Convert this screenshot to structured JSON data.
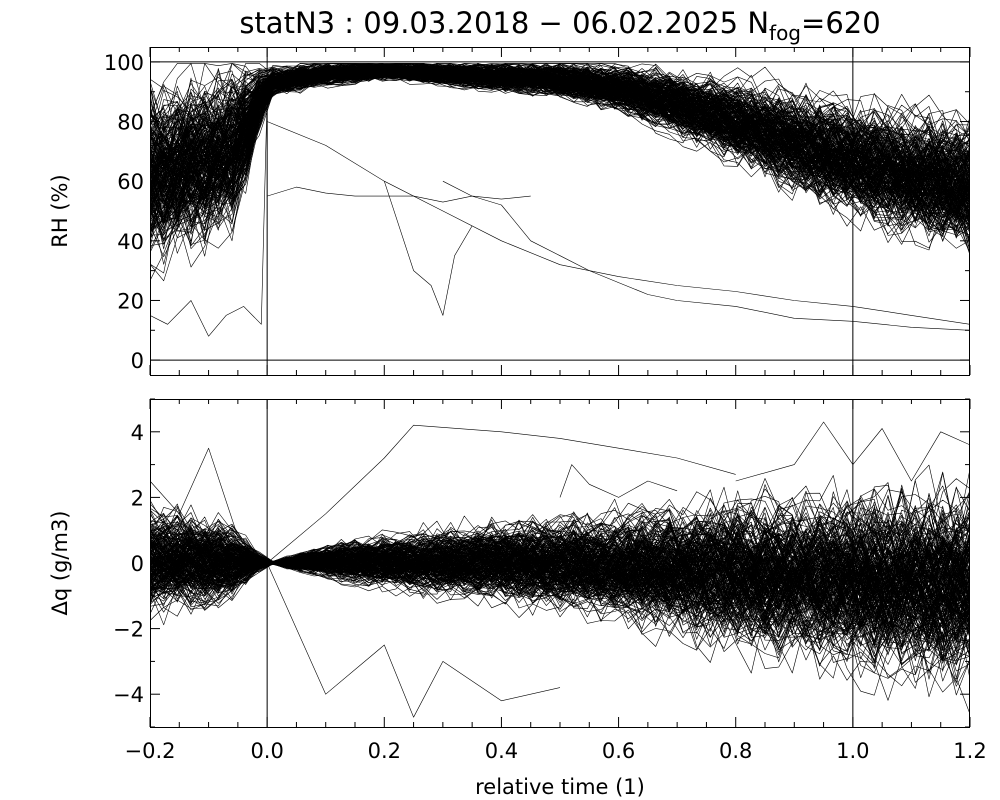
{
  "title": {
    "prefix": "statN3 : 09.03.2018 − 06.02.2025 N",
    "subscript": "fog",
    "suffix": "=620"
  },
  "chart_data": [
    {
      "type": "line",
      "panel": "top",
      "ylabel": "RH (%)",
      "xlabel": "",
      "xlim": [
        -0.2,
        1.2
      ],
      "ylim": [
        -5,
        105
      ],
      "yticks": [
        0,
        20,
        40,
        60,
        80,
        100
      ],
      "ytick_labels": [
        "0",
        "20",
        "40",
        "60",
        "80",
        "100"
      ],
      "reference_lines": {
        "y": [
          0,
          100
        ],
        "x": [
          0.0,
          1.0
        ]
      },
      "n_traces": 620,
      "envelope": {
        "x": [
          -0.2,
          -0.15,
          -0.1,
          -0.05,
          0.0,
          0.1,
          0.2,
          0.3,
          0.4,
          0.5,
          0.6,
          0.7,
          0.8,
          0.9,
          1.0,
          1.1,
          1.2
        ],
        "center": [
          62,
          65,
          67,
          72,
          93,
          96,
          97,
          96,
          95,
          94,
          91,
          86,
          80,
          73,
          67,
          62,
          58
        ],
        "spread": [
          32,
          30,
          30,
          27,
          5,
          4,
          3,
          4,
          5,
          6,
          8,
          11,
          14,
          17,
          20,
          22,
          24
        ]
      },
      "outliers": [
        {
          "x": [
            -0.2,
            -0.17,
            -0.13,
            -0.1,
            -0.07,
            -0.04,
            -0.01,
            0.0
          ],
          "y": [
            15,
            12,
            20,
            8,
            15,
            18,
            12,
            88
          ]
        },
        {
          "x": [
            0.0,
            0.05,
            0.1,
            0.15,
            0.2,
            0.25,
            0.3,
            0.35,
            0.4,
            0.45
          ],
          "y": [
            55,
            58,
            56,
            55,
            55,
            55,
            53,
            55,
            54,
            55
          ]
        },
        {
          "x": [
            0.0,
            0.1,
            0.2,
            0.3,
            0.4,
            0.5,
            0.6,
            0.7,
            0.8,
            0.9,
            1.0,
            1.1,
            1.2
          ],
          "y": [
            80,
            72,
            60,
            50,
            40,
            32,
            28,
            25,
            23,
            20,
            18,
            15,
            12
          ]
        },
        {
          "x": [
            0.2,
            0.25,
            0.28,
            0.3,
            0.32,
            0.35
          ],
          "y": [
            60,
            30,
            25,
            15,
            35,
            45
          ]
        },
        {
          "x": [
            0.3,
            0.35,
            0.4,
            0.45,
            0.5,
            0.55,
            0.6,
            0.65,
            0.7,
            0.8,
            0.9,
            1.0,
            1.1,
            1.2
          ],
          "y": [
            60,
            55,
            52,
            40,
            35,
            30,
            26,
            22,
            20,
            18,
            14,
            13,
            11,
            10
          ]
        }
      ]
    },
    {
      "type": "line",
      "panel": "bottom",
      "ylabel": "Δq (g/m3)",
      "xlabel": "relative time (1)",
      "xlim": [
        -0.2,
        1.2
      ],
      "ylim": [
        -5,
        5
      ],
      "xticks": [
        -0.2,
        0.0,
        0.2,
        0.4,
        0.6,
        0.8,
        1.0,
        1.2
      ],
      "xtick_labels": [
        "−0.2",
        "0.0",
        "0.2",
        "0.4",
        "0.6",
        "0.8",
        "1.0",
        "1.2"
      ],
      "yticks": [
        -4,
        -2,
        0,
        2,
        4
      ],
      "ytick_labels": [
        "−4",
        "−2",
        "0",
        "2",
        "4"
      ],
      "reference_lines": {
        "x": [
          0.0,
          1.0
        ]
      },
      "n_traces": 620,
      "envelope": {
        "x": [
          -0.2,
          -0.15,
          -0.1,
          -0.05,
          0.0,
          0.1,
          0.2,
          0.3,
          0.4,
          0.5,
          0.6,
          0.7,
          0.8,
          0.9,
          1.0,
          1.1,
          1.2
        ],
        "center": [
          0.1,
          0.1,
          0.05,
          0.05,
          0,
          0.05,
          0.05,
          0.05,
          0.05,
          0.0,
          -0.1,
          -0.2,
          -0.3,
          -0.4,
          -0.5,
          -0.6,
          -0.7
        ],
        "spread": [
          1.6,
          1.5,
          1.4,
          1.0,
          0,
          0.5,
          0.8,
          1.0,
          1.2,
          1.4,
          1.6,
          1.9,
          2.2,
          2.4,
          2.6,
          2.8,
          3.0
        ]
      },
      "outliers": [
        {
          "x": [
            0.0,
            0.1,
            0.2,
            0.25,
            0.4,
            0.5,
            0.6,
            0.7,
            0.8
          ],
          "y": [
            0,
            1.5,
            3.2,
            4.2,
            4.0,
            3.8,
            3.5,
            3.2,
            2.7
          ]
        },
        {
          "x": [
            -0.2,
            -0.15,
            -0.1,
            -0.05,
            0.0
          ],
          "y": [
            2.5,
            1.5,
            3.5,
            0.8,
            0
          ]
        },
        {
          "x": [
            0.5,
            0.52,
            0.55,
            0.6,
            0.65,
            0.7
          ],
          "y": [
            2.0,
            3.0,
            2.4,
            2.0,
            2.5,
            2.2
          ]
        },
        {
          "x": [
            0.8,
            0.9,
            0.95,
            1.0,
            1.05,
            1.1,
            1.15,
            1.2
          ],
          "y": [
            2.5,
            3.0,
            4.3,
            3.0,
            4.1,
            2.5,
            4.0,
            3.6
          ]
        },
        {
          "x": [
            0.0,
            0.05,
            0.1,
            0.2,
            0.25,
            0.3,
            0.4,
            0.5
          ],
          "y": [
            0,
            -2.0,
            -4.0,
            -2.5,
            -4.7,
            -3.0,
            -4.2,
            -3.8
          ]
        }
      ]
    }
  ]
}
